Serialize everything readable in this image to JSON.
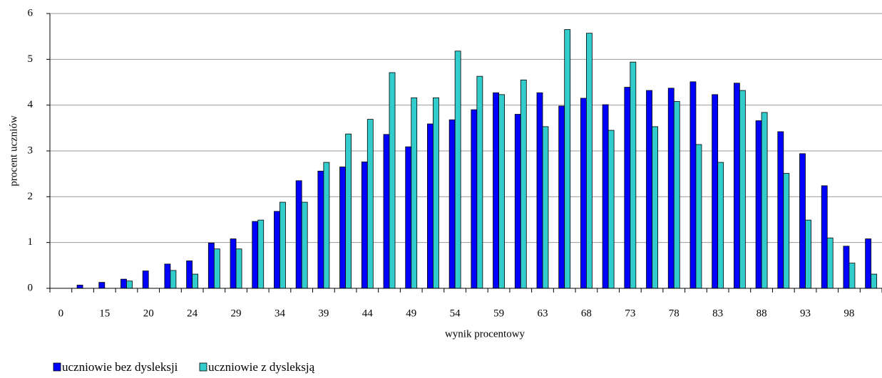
{
  "chart_data": {
    "type": "bar",
    "x_label": "wynik procentowy",
    "y_label": "procent uczniów",
    "categories": [
      "0",
      null,
      "15",
      null,
      "20",
      null,
      "24",
      null,
      "29",
      null,
      "34",
      null,
      "39",
      null,
      "44",
      null,
      "49",
      null,
      "54",
      null,
      "59",
      null,
      "63",
      null,
      "68",
      null,
      "73",
      null,
      "78",
      null,
      "83",
      null,
      "88",
      null,
      "93",
      null,
      "98",
      null
    ],
    "series": [
      {
        "name": "uczniowie bez dysleksji",
        "color": "#0000ff",
        "values": [
          0,
          0.07,
          0.13,
          0.2,
          0.38,
          0.53,
          0.6,
          0.99,
          1.08,
          1.46,
          1.68,
          2.35,
          2.56,
          2.65,
          2.76,
          3.36,
          3.09,
          3.59,
          3.68,
          3.9,
          4.27,
          3.8,
          4.27,
          3.98,
          4.15,
          4.01,
          4.39,
          4.32,
          4.37,
          4.51,
          4.23,
          4.48,
          3.66,
          3.42,
          2.94,
          2.24,
          0.92,
          1.08
        ]
      },
      {
        "name": "uczniowie z dysleksją",
        "color": "#33cccc",
        "values": [
          0,
          0,
          0,
          0.16,
          0,
          0.39,
          0.31,
          0.86,
          0.86,
          1.49,
          1.88,
          1.88,
          2.75,
          3.37,
          3.69,
          4.71,
          4.16,
          4.16,
          5.18,
          4.63,
          4.23,
          4.55,
          3.53,
          5.65,
          5.57,
          3.45,
          4.94,
          3.53,
          4.08,
          3.14,
          2.75,
          4.32,
          3.84,
          2.51,
          1.49,
          1.1,
          0.55,
          0.31
        ]
      }
    ],
    "ylim": [
      0,
      6
    ],
    "yticks": [
      0,
      1,
      2,
      3,
      4,
      5,
      6
    ],
    "grid": true
  }
}
